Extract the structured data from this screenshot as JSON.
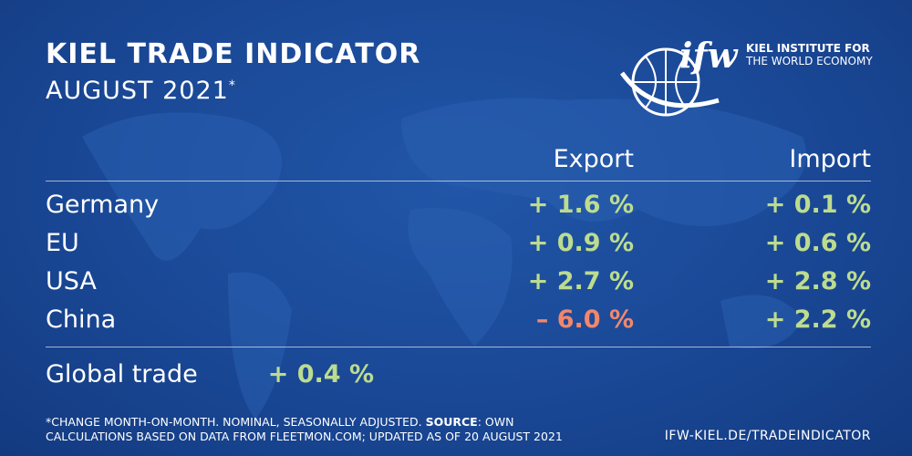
{
  "header": {
    "title": "KIEL TRADE INDICATOR",
    "subtitle": "AUGUST 2021",
    "subtitle_mark": "*"
  },
  "logo": {
    "mark": "ifw",
    "line1": "KIEL INSTITUTE FOR",
    "line2": "THE WORLD ECONOMY"
  },
  "table": {
    "columns": [
      "Export",
      "Import"
    ],
    "rows": [
      [
        "Germany",
        "+ 1.6 %",
        "+ 0.1 %"
      ],
      [
        "EU",
        "+ 0.9 %",
        "+ 0.6 %"
      ],
      [
        "USA",
        "+ 2.7 %",
        "+ 2.8 %"
      ],
      [
        "China",
        "– 6.0 %",
        "+ 2.2 %"
      ]
    ]
  },
  "global": {
    "label": "Global trade",
    "value": "+ 0.4 %"
  },
  "style": {
    "positive_color": "#bcdc8f",
    "negative_color": "#f2876c"
  },
  "footnote": {
    "line1_start": "*CHANGE MONTH-ON-MONTH. NOMINAL, SEASONALLY ADJUSTED. ",
    "line1_bold": "SOURCE",
    "line1_end": ": OWN",
    "line2": "CALCULATIONS BASED ON DATA FROM FLEETMON.COM; UPDATED AS OF 20 AUGUST 2021"
  },
  "url": "IFW-KIEL.DE/TRADEINDICATOR"
}
